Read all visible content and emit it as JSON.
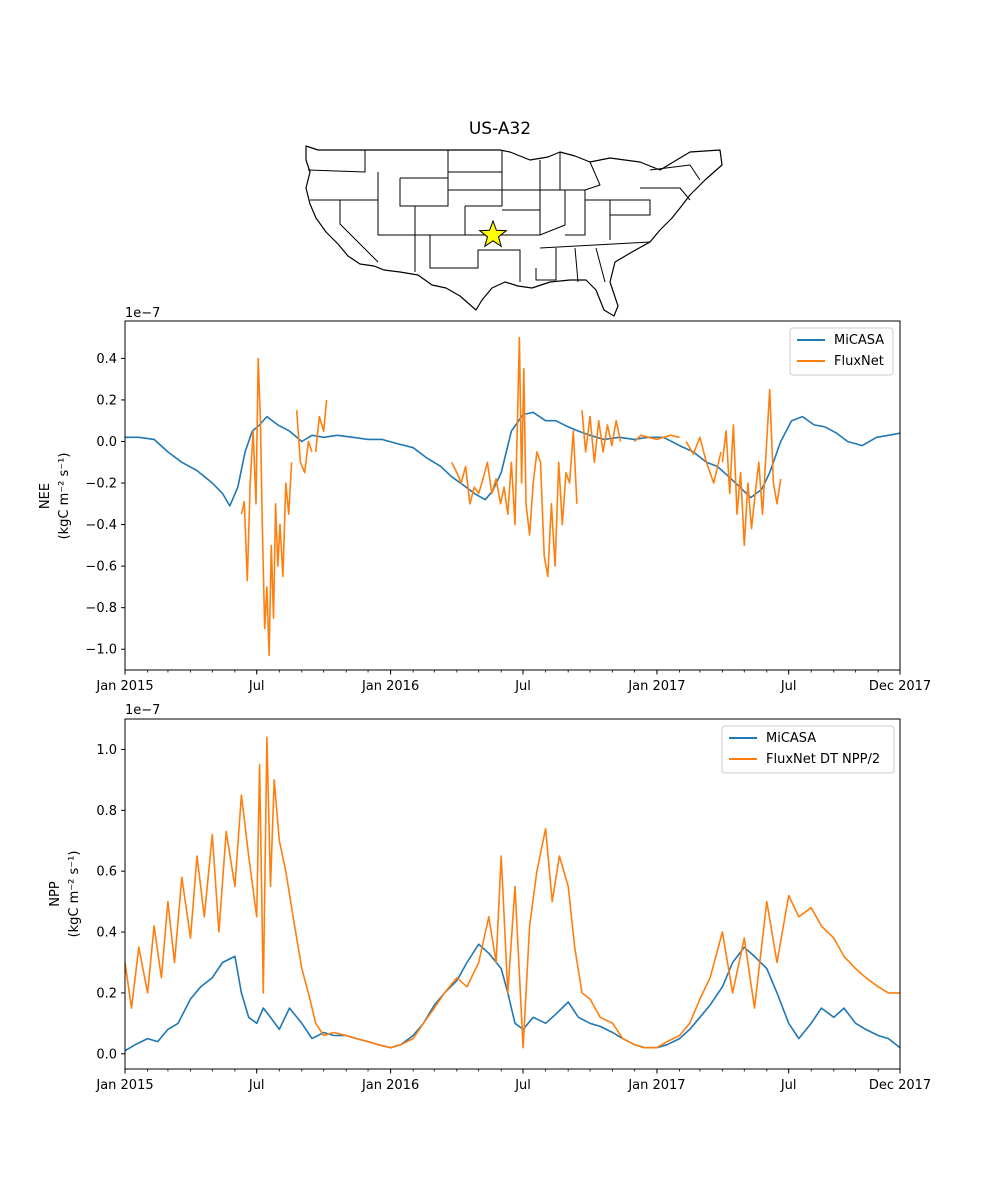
{
  "figure": {
    "title": "US-A32",
    "colors": {
      "micasa": "#1f77b4",
      "fluxnet": "#ff7f0e"
    },
    "map": {
      "region": "contiguous United States with state borders",
      "site_marker": "yellow star",
      "site_location": "central Oklahoma"
    }
  },
  "chart_data": [
    {
      "type": "line",
      "ylabel_line1": "NEE",
      "ylabel_line2": "(kgC m⁻² s⁻¹)",
      "offset_label": "1e−7",
      "xlim": [
        "2015-01-01",
        "2017-12-01"
      ],
      "ylim": [
        -1.1,
        0.58
      ],
      "yticks": [
        -1.0,
        -0.8,
        -0.6,
        -0.4,
        -0.2,
        0.0,
        0.2,
        0.4
      ],
      "ytick_labels": [
        "−1.0",
        "−0.8",
        "−0.6",
        "−0.4",
        "−0.2",
        "0.0",
        "0.2",
        "0.4"
      ],
      "xticks": [
        "2015-01-01",
        "2015-07-01",
        "2016-01-01",
        "2016-07-01",
        "2017-01-01",
        "2017-07-01",
        "2017-12-01"
      ],
      "xtick_labels": [
        "Jan 2015",
        "Jul",
        "Jan 2016",
        "Jul",
        "Jan 2017",
        "Jul",
        "Dec 2017"
      ],
      "legend": {
        "placement": "top-right",
        "entries": [
          "MiCASA",
          "FluxNet"
        ]
      },
      "grid": false,
      "series": [
        {
          "name": "MiCASA",
          "color": "#1f77b4",
          "x": [
            "2015-01-01",
            "2015-01-20",
            "2015-02-10",
            "2015-03-01",
            "2015-03-20",
            "2015-04-10",
            "2015-05-01",
            "2015-05-15",
            "2015-05-25",
            "2015-06-05",
            "2015-06-15",
            "2015-06-25",
            "2015-07-05",
            "2015-07-15",
            "2015-07-30",
            "2015-08-15",
            "2015-09-01",
            "2015-09-15",
            "2015-10-01",
            "2015-10-20",
            "2015-11-10",
            "2015-12-01",
            "2015-12-20",
            "2016-01-10",
            "2016-02-01",
            "2016-02-20",
            "2016-03-10",
            "2016-03-25",
            "2016-04-10",
            "2016-04-25",
            "2016-05-10",
            "2016-05-20",
            "2016-06-01",
            "2016-06-15",
            "2016-07-01",
            "2016-07-15",
            "2016-08-01",
            "2016-08-15",
            "2016-09-01",
            "2016-09-15",
            "2016-10-01",
            "2016-10-20",
            "2016-11-10",
            "2016-12-01",
            "2016-12-20",
            "2017-01-10",
            "2017-02-01",
            "2017-02-20",
            "2017-03-10",
            "2017-03-25",
            "2017-04-10",
            "2017-04-25",
            "2017-05-10",
            "2017-05-25",
            "2017-06-05",
            "2017-06-20",
            "2017-07-05",
            "2017-07-20",
            "2017-08-05",
            "2017-08-20",
            "2017-09-05",
            "2017-09-20",
            "2017-10-10",
            "2017-10-30",
            "2017-11-15",
            "2017-12-01"
          ],
          "y": [
            0.02,
            0.02,
            0.01,
            -0.05,
            -0.1,
            -0.14,
            -0.2,
            -0.25,
            -0.31,
            -0.22,
            -0.05,
            0.05,
            0.08,
            0.12,
            0.08,
            0.05,
            0.0,
            0.03,
            0.02,
            0.03,
            0.02,
            0.01,
            0.01,
            -0.01,
            -0.03,
            -0.08,
            -0.12,
            -0.17,
            -0.21,
            -0.25,
            -0.28,
            -0.24,
            -0.15,
            0.05,
            0.13,
            0.14,
            0.1,
            0.1,
            0.07,
            0.05,
            0.03,
            0.01,
            0.02,
            0.01,
            0.02,
            0.02,
            -0.02,
            -0.05,
            -0.1,
            -0.12,
            -0.17,
            -0.22,
            -0.27,
            -0.23,
            -0.15,
            0.0,
            0.1,
            0.12,
            0.08,
            0.07,
            0.04,
            0.0,
            -0.02,
            0.02,
            0.03,
            0.04
          ]
        },
        {
          "name": "FluxNet",
          "color": "#ff7f0e",
          "segments": [
            {
              "x": [
                "2015-06-10",
                "2015-06-14",
                "2015-06-18",
                "2015-06-22",
                "2015-06-26",
                "2015-06-30",
                "2015-07-03",
                "2015-07-06",
                "2015-07-09",
                "2015-07-12",
                "2015-07-15",
                "2015-07-18",
                "2015-07-21",
                "2015-07-24",
                "2015-07-27",
                "2015-07-30",
                "2015-08-02",
                "2015-08-06",
                "2015-08-10",
                "2015-08-14",
                "2015-08-18"
              ],
              "y": [
                -0.35,
                -0.29,
                -0.67,
                -0.2,
                0.05,
                -0.3,
                0.4,
                0.1,
                -0.45,
                -0.9,
                -0.7,
                -1.03,
                -0.5,
                -0.85,
                -0.3,
                -0.6,
                -0.4,
                -0.65,
                -0.2,
                -0.35,
                -0.1
              ]
            },
            {
              "x": [
                "2015-08-25",
                "2015-08-30",
                "2015-09-05",
                "2015-09-10",
                "2015-09-15"
              ],
              "y": [
                0.15,
                -0.1,
                -0.15,
                0.0,
                -0.05
              ]
            },
            {
              "x": [
                "2015-09-20",
                "2015-09-25",
                "2015-10-01",
                "2015-10-05"
              ],
              "y": [
                -0.05,
                0.12,
                0.05,
                0.2
              ]
            },
            {
              "x": [
                "2016-03-25",
                "2016-04-01",
                "2016-04-07",
                "2016-04-13",
                "2016-04-19",
                "2016-04-25",
                "2016-05-01",
                "2016-05-07",
                "2016-05-13",
                "2016-05-19",
                "2016-05-25",
                "2016-05-31",
                "2016-06-05",
                "2016-06-10",
                "2016-06-15",
                "2016-06-20",
                "2016-06-23",
                "2016-06-26",
                "2016-06-29",
                "2016-07-02",
                "2016-07-05",
                "2016-07-10",
                "2016-07-15",
                "2016-07-20",
                "2016-07-25",
                "2016-07-30",
                "2016-08-04",
                "2016-08-09",
                "2016-08-14",
                "2016-08-19",
                "2016-08-24",
                "2016-08-29",
                "2016-09-03",
                "2016-09-08",
                "2016-09-13"
              ],
              "y": [
                -0.1,
                -0.15,
                -0.2,
                -0.12,
                -0.3,
                -0.22,
                -0.25,
                -0.18,
                -0.1,
                -0.25,
                -0.18,
                -0.3,
                -0.22,
                -0.35,
                -0.1,
                -0.4,
                0.05,
                0.5,
                -0.2,
                0.35,
                -0.3,
                -0.45,
                -0.2,
                -0.05,
                -0.1,
                -0.55,
                -0.65,
                -0.3,
                -0.6,
                -0.1,
                -0.4,
                -0.15,
                -0.2,
                0.05,
                -0.3
              ]
            },
            {
              "x": [
                "2016-09-20",
                "2016-09-25",
                "2016-10-01",
                "2016-10-07",
                "2016-10-13",
                "2016-10-19",
                "2016-10-25",
                "2016-10-31",
                "2016-11-06",
                "2016-11-12"
              ],
              "y": [
                0.15,
                -0.05,
                0.12,
                -0.1,
                0.1,
                -0.05,
                0.08,
                -0.02,
                0.1,
                0.0
              ]
            },
            {
              "x": [
                "2016-12-01",
                "2016-12-10",
                "2016-12-20",
                "2017-01-01",
                "2017-01-10",
                "2017-01-20",
                "2017-02-01"
              ],
              "y": [
                0.0,
                0.03,
                0.02,
                0.01,
                0.02,
                0.03,
                0.02
              ]
            },
            {
              "x": [
                "2017-02-10",
                "2017-02-20",
                "2017-03-01",
                "2017-03-10",
                "2017-03-20",
                "2017-03-30"
              ],
              "y": [
                0.0,
                -0.06,
                0.02,
                -0.1,
                -0.2,
                -0.05
              ]
            },
            {
              "x": [
                "2017-04-01",
                "2017-04-06",
                "2017-04-11",
                "2017-04-16",
                "2017-04-21",
                "2017-04-26",
                "2017-05-01",
                "2017-05-06",
                "2017-05-11",
                "2017-05-16",
                "2017-05-21",
                "2017-05-26",
                "2017-05-31",
                "2017-06-05",
                "2017-06-10",
                "2017-06-15",
                "2017-06-20"
              ],
              "y": [
                -0.1,
                0.05,
                -0.25,
                0.08,
                -0.35,
                -0.15,
                -0.5,
                -0.2,
                -0.42,
                -0.25,
                -0.1,
                -0.35,
                -0.05,
                0.25,
                -0.2,
                -0.3,
                -0.18
              ]
            }
          ]
        }
      ]
    },
    {
      "type": "line",
      "ylabel_line1": "NPP",
      "ylabel_line2": "(kgC m⁻² s⁻¹)",
      "offset_label": "1e−7",
      "xlim": [
        "2015-01-01",
        "2017-12-01"
      ],
      "ylim": [
        -0.05,
        1.1
      ],
      "yticks": [
        0.0,
        0.2,
        0.4,
        0.6,
        0.8,
        1.0
      ],
      "ytick_labels": [
        "0.0",
        "0.2",
        "0.4",
        "0.6",
        "0.8",
        "1.0"
      ],
      "xticks": [
        "2015-01-01",
        "2015-07-01",
        "2016-01-01",
        "2016-07-01",
        "2017-01-01",
        "2017-07-01",
        "2017-12-01"
      ],
      "xtick_labels": [
        "Jan 2015",
        "Jul",
        "Jan 2016",
        "Jul",
        "Jan 2017",
        "Jul",
        "Dec 2017"
      ],
      "legend": {
        "placement": "top-right",
        "entries": [
          "MiCASA",
          "FluxNet DT NPP/2"
        ]
      },
      "grid": false,
      "series": [
        {
          "name": "MiCASA",
          "color": "#1f77b4",
          "x": [
            "2015-01-01",
            "2015-01-15",
            "2015-02-01",
            "2015-02-15",
            "2015-03-01",
            "2015-03-15",
            "2015-04-01",
            "2015-04-15",
            "2015-05-01",
            "2015-05-15",
            "2015-06-01",
            "2015-06-10",
            "2015-06-20",
            "2015-07-01",
            "2015-07-10",
            "2015-07-20",
            "2015-08-01",
            "2015-08-15",
            "2015-09-01",
            "2015-09-15",
            "2015-10-01",
            "2015-10-15",
            "2015-11-01",
            "2015-11-15",
            "2015-12-01",
            "2015-12-15",
            "2016-01-01",
            "2016-01-15",
            "2016-02-01",
            "2016-02-15",
            "2016-03-01",
            "2016-03-15",
            "2016-04-01",
            "2016-04-15",
            "2016-05-01",
            "2016-05-15",
            "2016-06-01",
            "2016-06-10",
            "2016-06-20",
            "2016-07-01",
            "2016-07-15",
            "2016-08-01",
            "2016-08-15",
            "2016-09-01",
            "2016-09-15",
            "2016-10-01",
            "2016-10-15",
            "2016-11-01",
            "2016-11-15",
            "2016-12-01",
            "2016-12-15",
            "2017-01-01",
            "2017-01-15",
            "2017-02-01",
            "2017-02-15",
            "2017-03-01",
            "2017-03-15",
            "2017-04-01",
            "2017-04-15",
            "2017-05-01",
            "2017-05-15",
            "2017-06-01",
            "2017-06-15",
            "2017-07-01",
            "2017-07-15",
            "2017-08-01",
            "2017-08-15",
            "2017-09-01",
            "2017-09-15",
            "2017-10-01",
            "2017-10-15",
            "2017-11-01",
            "2017-11-15",
            "2017-12-01"
          ],
          "y": [
            0.01,
            0.03,
            0.05,
            0.04,
            0.08,
            0.1,
            0.18,
            0.22,
            0.25,
            0.3,
            0.32,
            0.2,
            0.12,
            0.1,
            0.15,
            0.12,
            0.08,
            0.15,
            0.1,
            0.05,
            0.07,
            0.06,
            0.06,
            0.05,
            0.04,
            0.03,
            0.02,
            0.03,
            0.06,
            0.1,
            0.16,
            0.2,
            0.24,
            0.3,
            0.36,
            0.33,
            0.28,
            0.2,
            0.1,
            0.08,
            0.12,
            0.1,
            0.13,
            0.17,
            0.12,
            0.1,
            0.09,
            0.07,
            0.05,
            0.03,
            0.02,
            0.02,
            0.03,
            0.05,
            0.08,
            0.12,
            0.16,
            0.22,
            0.3,
            0.35,
            0.32,
            0.28,
            0.2,
            0.1,
            0.05,
            0.1,
            0.15,
            0.12,
            0.15,
            0.1,
            0.08,
            0.06,
            0.05,
            0.02
          ]
        },
        {
          "name": "FluxNet DT NPP/2",
          "color": "#ff7f0e",
          "x": [
            "2015-01-01",
            "2015-01-10",
            "2015-01-20",
            "2015-02-01",
            "2015-02-10",
            "2015-02-20",
            "2015-03-01",
            "2015-03-10",
            "2015-03-20",
            "2015-04-01",
            "2015-04-10",
            "2015-04-20",
            "2015-05-01",
            "2015-05-10",
            "2015-05-20",
            "2015-06-01",
            "2015-06-10",
            "2015-06-20",
            "2015-07-01",
            "2015-07-05",
            "2015-07-10",
            "2015-07-15",
            "2015-07-20",
            "2015-07-25",
            "2015-08-01",
            "2015-08-10",
            "2015-08-20",
            "2015-09-01",
            "2015-09-10",
            "2015-09-20",
            "2015-10-01",
            "2015-10-15",
            "2015-11-01",
            "2015-11-15",
            "2015-12-01",
            "2015-12-15",
            "2016-01-01",
            "2016-01-15",
            "2016-02-01",
            "2016-02-15",
            "2016-03-01",
            "2016-03-15",
            "2016-04-01",
            "2016-04-15",
            "2016-05-01",
            "2016-05-15",
            "2016-05-25",
            "2016-06-01",
            "2016-06-10",
            "2016-06-20",
            "2016-07-01",
            "2016-07-10",
            "2016-07-20",
            "2016-08-01",
            "2016-08-10",
            "2016-08-20",
            "2016-09-01",
            "2016-09-10",
            "2016-09-20",
            "2016-10-01",
            "2016-10-15",
            "2016-11-01",
            "2016-11-15",
            "2016-12-01",
            "2016-12-15",
            "2017-01-01",
            "2017-01-15",
            "2017-02-01",
            "2017-02-15",
            "2017-03-01",
            "2017-03-15",
            "2017-04-01",
            "2017-04-15",
            "2017-05-01",
            "2017-05-15",
            "2017-06-01",
            "2017-06-15",
            "2017-07-01",
            "2017-07-15",
            "2017-08-01",
            "2017-08-15",
            "2017-09-01",
            "2017-09-15",
            "2017-10-01",
            "2017-10-15",
            "2017-11-01",
            "2017-11-15",
            "2017-12-01"
          ],
          "y": [
            0.3,
            0.15,
            0.35,
            0.2,
            0.42,
            0.25,
            0.5,
            0.3,
            0.58,
            0.38,
            0.65,
            0.45,
            0.72,
            0.4,
            0.73,
            0.55,
            0.85,
            0.65,
            0.45,
            0.95,
            0.2,
            1.04,
            0.55,
            0.9,
            0.7,
            0.6,
            0.45,
            0.28,
            0.2,
            0.1,
            0.06,
            0.07,
            0.06,
            0.05,
            0.04,
            0.03,
            0.02,
            0.03,
            0.05,
            0.1,
            0.15,
            0.2,
            0.25,
            0.22,
            0.3,
            0.45,
            0.3,
            0.65,
            0.2,
            0.55,
            0.02,
            0.42,
            0.6,
            0.74,
            0.5,
            0.65,
            0.55,
            0.35,
            0.2,
            0.18,
            0.12,
            0.1,
            0.05,
            0.03,
            0.02,
            0.02,
            0.04,
            0.06,
            0.1,
            0.18,
            0.25,
            0.4,
            0.2,
            0.38,
            0.15,
            0.5,
            0.3,
            0.52,
            0.45,
            0.48,
            0.42,
            0.38,
            0.32,
            0.28,
            0.25,
            0.22,
            0.2,
            0.2
          ]
        }
      ]
    }
  ]
}
